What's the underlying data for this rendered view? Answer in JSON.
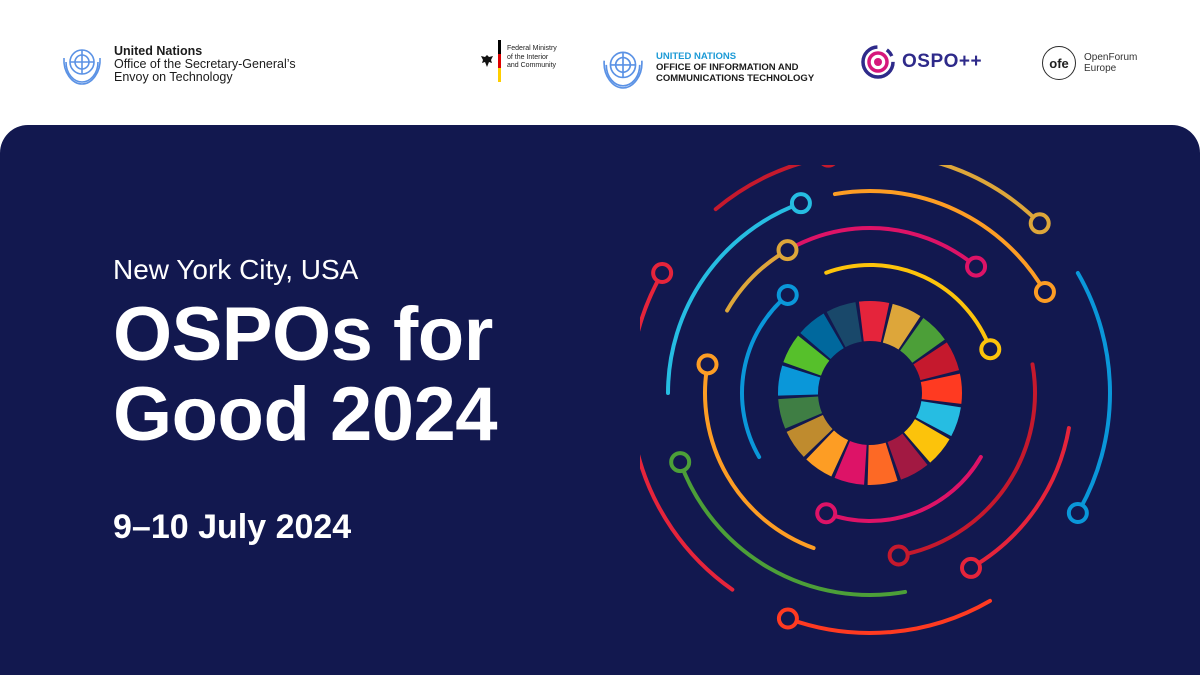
{
  "header": {
    "un_envoy": {
      "line1": "United Nations",
      "line2": "Office of the Secretary-General’s",
      "line3": "Envoy on Technology"
    },
    "bmi": {
      "line1": "Federal Ministry",
      "line2": "of the Interior",
      "line3": "and Community"
    },
    "oict": {
      "line1": "UNITED NATIONS",
      "line2": "OFFICE OF INFORMATION AND",
      "line3": "COMMUNICATIONS TECHNOLOGY"
    },
    "ospo": {
      "label": "OSPO++"
    },
    "ofe": {
      "mark": "ofe",
      "line1": "OpenForum",
      "line2": "Europe"
    }
  },
  "event": {
    "location": "New York City, USA",
    "title_line1": "OSPOs for",
    "title_line2": "Good 2024",
    "dates": "9–10 July 2024"
  },
  "colors": {
    "panel": "#12184f",
    "un_blue": "#5b92e5",
    "oict_blue": "#1c9ad6",
    "ospo_magenta": "#d6177c",
    "ospo_navy": "#2e2a8a",
    "sdg_wheel": [
      "#e5243b",
      "#dda63a",
      "#4c9f38",
      "#c5192d",
      "#ff3a21",
      "#26bde2",
      "#fcc30b",
      "#a21942",
      "#fd6925",
      "#dd1367",
      "#fd9d24",
      "#bf8b2e",
      "#3f7e44",
      "#0a97d9",
      "#56c02b",
      "#00689d",
      "#19486a"
    ]
  },
  "icons": [
    "un-emblem-icon",
    "german-eagle-icon",
    "un-emblem-icon",
    "ospo-ring-icon",
    "sdg-circuit-wheel-icon"
  ]
}
